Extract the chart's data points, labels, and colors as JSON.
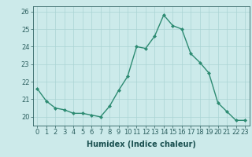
{
  "x": [
    0,
    1,
    2,
    3,
    4,
    5,
    6,
    7,
    8,
    9,
    10,
    11,
    12,
    13,
    14,
    15,
    16,
    17,
    18,
    19,
    20,
    21,
    22,
    23
  ],
  "y": [
    21.6,
    20.9,
    20.5,
    20.4,
    20.2,
    20.2,
    20.1,
    20.0,
    20.6,
    21.5,
    22.3,
    24.0,
    23.9,
    24.6,
    25.8,
    25.2,
    25.0,
    23.6,
    23.1,
    22.5,
    20.8,
    20.3,
    19.8,
    19.8
  ],
  "line_color": "#2d8b72",
  "marker": "D",
  "marker_size": 2.0,
  "line_width": 1.0,
  "bg_color": "#cceaea",
  "grid_color": "#aad4d4",
  "xlabel": "Humidex (Indice chaleur)",
  "xlabel_fontsize": 7,
  "tick_fontsize": 6,
  "ylim": [
    19.5,
    26.3
  ],
  "yticks": [
    20,
    21,
    22,
    23,
    24,
    25,
    26
  ],
  "xlim": [
    -0.5,
    23.5
  ],
  "xticks": [
    0,
    1,
    2,
    3,
    4,
    5,
    6,
    7,
    8,
    9,
    10,
    11,
    12,
    13,
    14,
    15,
    16,
    17,
    18,
    19,
    20,
    21,
    22,
    23
  ],
  "tick_color": "#2d6060",
  "label_color": "#1a5050"
}
